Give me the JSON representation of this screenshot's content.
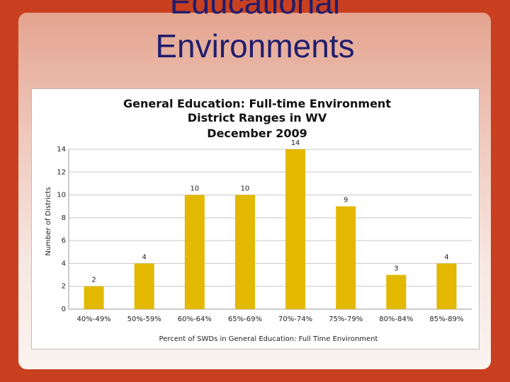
{
  "slide": {
    "title_line1": "Educational",
    "title_line2": "Environments",
    "accent_color": "#c8401f",
    "title_color": "#1f1d6e"
  },
  "chart_data": {
    "type": "bar",
    "title_lines": [
      "General Education: Full-time Environment",
      "District Ranges in WV",
      "December 2009"
    ],
    "categories": [
      "40%-49%",
      "50%-59%",
      "60%-64%",
      "65%-69%",
      "70%-74%",
      "75%-79%",
      "80%-84%",
      "85%-89%"
    ],
    "values": [
      2,
      4,
      10,
      10,
      14,
      9,
      3,
      4
    ],
    "xlabel": "Percent of SWDs in General Education: Full Time Environment",
    "ylabel": "Number of Districts",
    "ylim": [
      0,
      14
    ],
    "yticks": [
      0,
      2,
      4,
      6,
      8,
      10,
      12,
      14
    ],
    "grid": true,
    "legend": "none",
    "bar_color": "#e3b800"
  }
}
